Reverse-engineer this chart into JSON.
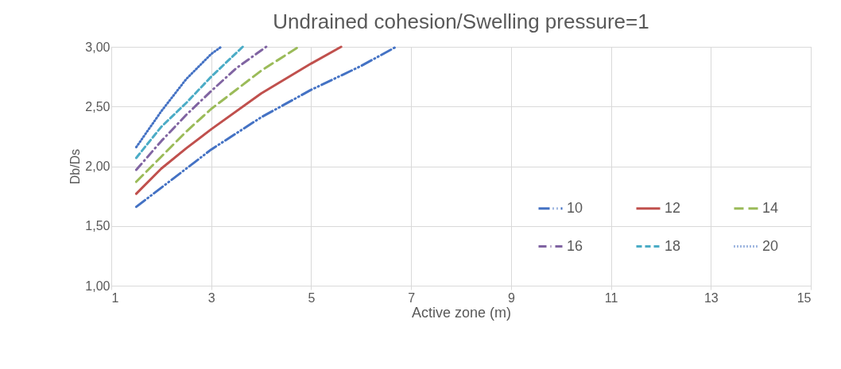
{
  "chart_data": {
    "type": "line",
    "title": "Undrained cohesion/Swelling pressure=1",
    "xlabel": "Active zone (m)",
    "ylabel": "Db/Ds",
    "xlim": [
      1,
      15
    ],
    "xticks": [
      1,
      3,
      5,
      7,
      9,
      11,
      13,
      15
    ],
    "ylim": [
      1,
      3
    ],
    "yticks": [
      {
        "value": 1,
        "label": "1,00"
      },
      {
        "value": 1.5,
        "label": "1,50"
      },
      {
        "value": 2,
        "label": "2,00"
      },
      {
        "value": 2.5,
        "label": "2,50"
      },
      {
        "value": 3,
        "label": "3,00"
      }
    ],
    "grid": true,
    "legend": "bottom right",
    "marker": "none",
    "series": [
      {
        "name": "10",
        "color": "#4472c4",
        "line_style": "dashed",
        "x": [
          1.5,
          2,
          2.5,
          3,
          4,
          5,
          6,
          6.7
        ],
        "values": [
          1.66,
          1.82,
          1.98,
          2.14,
          2.41,
          2.64,
          2.84,
          3.0
        ]
      },
      {
        "name": "12",
        "color": "#c0504d",
        "line_style": "solid",
        "x": [
          1.5,
          2,
          2.5,
          3,
          4,
          5,
          5.6
        ],
        "values": [
          1.77,
          1.98,
          2.15,
          2.31,
          2.61,
          2.86,
          3.0
        ]
      },
      {
        "name": "14",
        "color": "#9bbb59",
        "line_style": "dashed",
        "x": [
          1.5,
          2,
          2.5,
          3,
          4,
          4.75
        ],
        "values": [
          1.87,
          2.08,
          2.29,
          2.48,
          2.8,
          3.0
        ]
      },
      {
        "name": "16",
        "color": "#8064a2",
        "line_style": "dashed",
        "x": [
          1.5,
          2,
          2.5,
          3,
          3.5,
          4.1
        ],
        "values": [
          1.97,
          2.21,
          2.43,
          2.63,
          2.82,
          3.0
        ]
      },
      {
        "name": "18",
        "color": "#4bacc6",
        "line_style": "dashed",
        "x": [
          1.5,
          2,
          2.5,
          3,
          3.63
        ],
        "values": [
          2.07,
          2.33,
          2.53,
          2.75,
          3.0
        ]
      },
      {
        "name": "20",
        "color": "#4472c4",
        "line_style": "dotted",
        "x": [
          1.5,
          2,
          2.5,
          3,
          3.2
        ],
        "values": [
          2.16,
          2.46,
          2.73,
          2.94,
          3.0
        ]
      }
    ]
  }
}
